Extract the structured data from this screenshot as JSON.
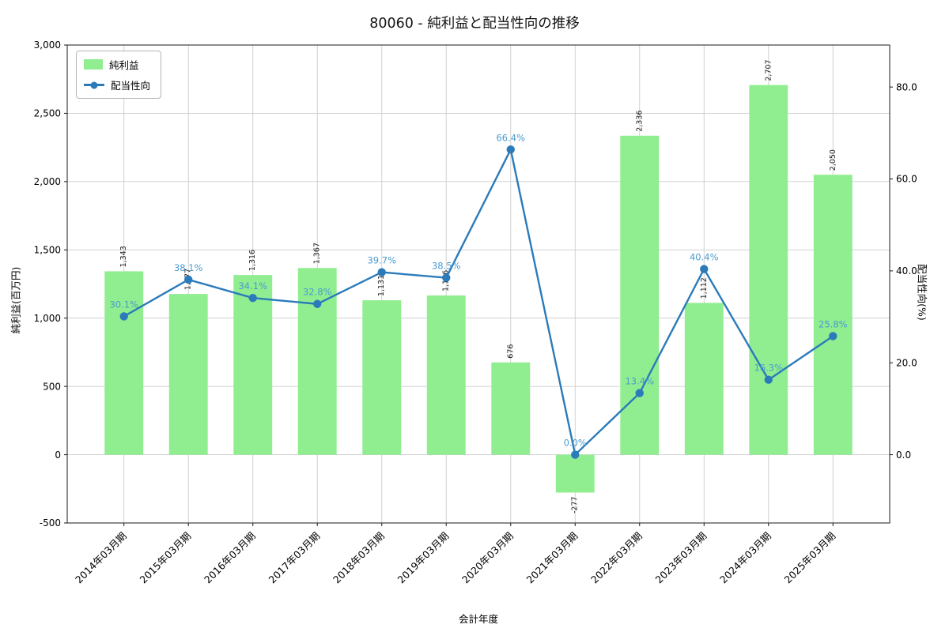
{
  "title": "80060 - 純利益と配当性向の推移",
  "axes": {
    "left_label": "純利益(百万円)",
    "right_label": "配当性向(%)",
    "x_label": "会計年度"
  },
  "chart_data": {
    "type": "bar+line-dual-axis",
    "title": "80060 - 純利益と配当性向の推移",
    "xlabel": "会計年度",
    "ylabel_left": "純利益(百万円)",
    "ylabel_right": "配当性向(%)",
    "grid": true,
    "legend_position": "upper left",
    "categories": [
      "2014年03月期",
      "2015年03月期",
      "2016年03月期",
      "2017年03月期",
      "2018年03月期",
      "2019年03月期",
      "2020年03月期",
      "2021年03月期",
      "2022年03月期",
      "2023年03月期",
      "2024年03月期",
      "2025年03月期"
    ],
    "left_axis": {
      "min": -500,
      "max": 3000,
      "ticks": [
        -500,
        0,
        500,
        1000,
        1500,
        2000,
        2500,
        3000
      ],
      "tick_labels": [
        "-500",
        "0",
        "500",
        "1,000",
        "1,500",
        "2,000",
        "2,500",
        "3,000"
      ]
    },
    "right_axis": {
      "min": -14.86,
      "max": 89.14,
      "ticks": [
        0,
        20,
        40,
        60,
        80
      ],
      "tick_labels": [
        "0.0",
        "20.0",
        "40.0",
        "60.0",
        "80.0"
      ]
    },
    "series": [
      {
        "name": "純利益",
        "type": "bar",
        "axis": "left",
        "color": "#90ee90",
        "values": [
          1343,
          1177,
          1316,
          1367,
          1131,
          1166,
          676,
          -277,
          2336,
          1112,
          2707,
          2050
        ],
        "labels": [
          "1,343",
          "1,177",
          "1,316",
          "1,367",
          "1,131",
          "1,166",
          "676",
          "-277",
          "2,336",
          "1,112",
          "2,707",
          "2,050"
        ]
      },
      {
        "name": "配当性向",
        "type": "line",
        "axis": "right",
        "color": "#2b7bba",
        "label_color": "#4a9bd0",
        "values": [
          30.1,
          38.1,
          34.1,
          32.8,
          39.7,
          38.5,
          66.4,
          0.0,
          13.4,
          40.4,
          16.3,
          25.8
        ],
        "labels": [
          "30.1%",
          "38.1%",
          "34.1%",
          "32.8%",
          "39.7%",
          "38.5%",
          "66.4%",
          "0.0%",
          "13.4%",
          "40.4%",
          "16.3%",
          "25.8%"
        ]
      }
    ]
  }
}
